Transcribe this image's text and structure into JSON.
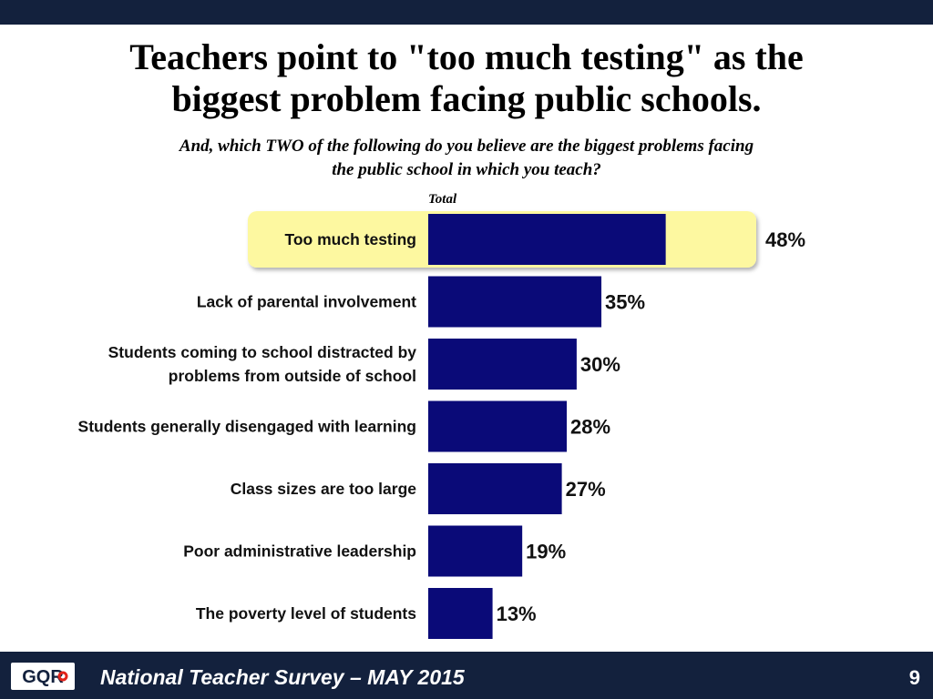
{
  "header": {
    "title_line1": "Teachers point to \"too much testing\" as the",
    "title_line2": "biggest problem facing public schools.",
    "subtitle_line1": "And, which TWO of the following do you believe are the biggest problems facing",
    "subtitle_line2": "the public school in which you teach?",
    "column_header": "Total"
  },
  "chart_data": {
    "type": "bar",
    "orientation": "horizontal",
    "categories": [
      [
        "Too much testing"
      ],
      [
        "Lack of parental involvement"
      ],
      [
        "Students coming to school distracted by",
        "problems from outside of school"
      ],
      [
        "Students generally disengaged with learning"
      ],
      [
        "Class sizes are too large"
      ],
      [
        "Poor administrative leadership"
      ],
      [
        "The poverty level of students"
      ]
    ],
    "values": [
      48,
      35,
      30,
      28,
      27,
      19,
      13
    ],
    "value_labels": [
      "48%",
      "35%",
      "30%",
      "28%",
      "27%",
      "19%",
      "13%"
    ],
    "highlighted_index": 0,
    "highlight_color": "#fdf8a0",
    "bar_color": "#0a0a78",
    "xlim": [
      0,
      100
    ]
  },
  "footer": {
    "logo_text": "GQR",
    "logo_accent_color": "#e2231a",
    "text": "National Teacher Survey – MAY 2015",
    "page_number": "9"
  }
}
